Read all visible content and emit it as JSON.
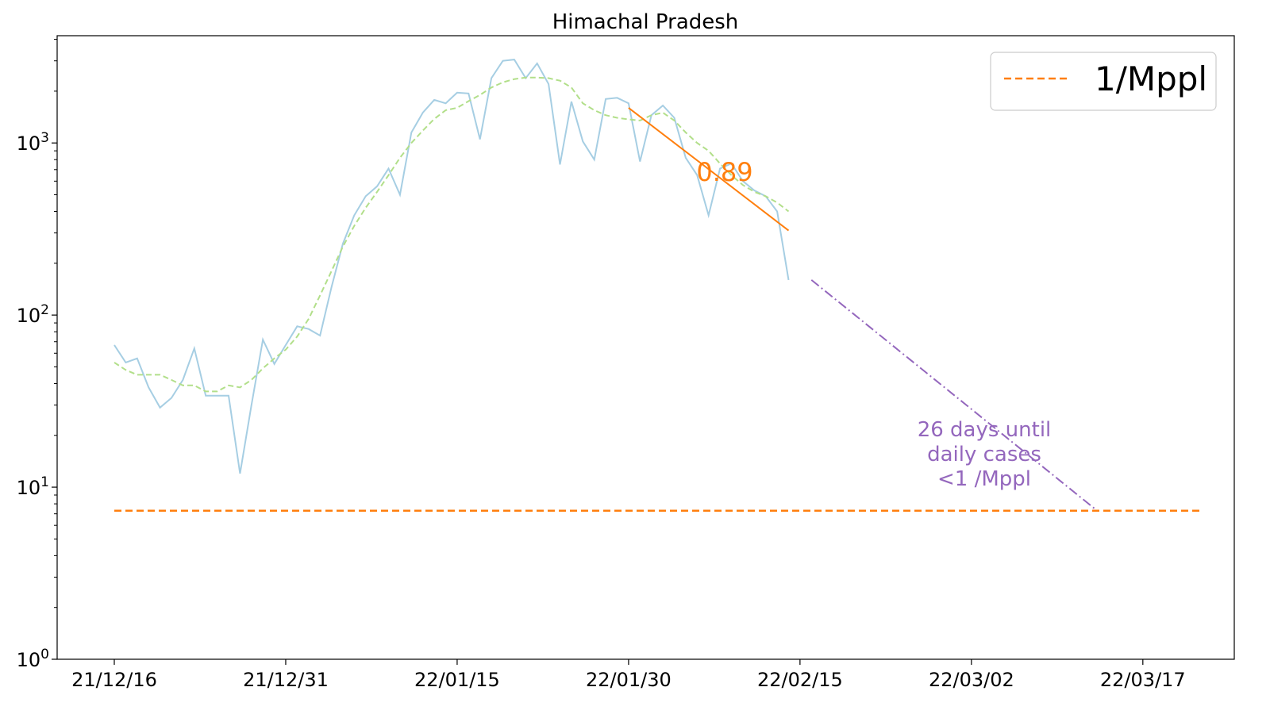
{
  "chart_data": {
    "type": "line",
    "title": "Himachal Pradesh",
    "xlabel": "",
    "ylabel": "",
    "y_scale": "log",
    "ylim": [
      1,
      4200
    ],
    "xlim": [
      "2021-12-11",
      "2022-03-24"
    ],
    "grid": false,
    "legend_position": "upper right",
    "x_tick_labels": [
      "21/12/16",
      "21/12/31",
      "22/01/15",
      "22/01/30",
      "22/02/15",
      "22/03/02",
      "22/03/17"
    ],
    "y_tick_labels": [
      {
        "base": "10",
        "exp": "0"
      },
      {
        "base": "10",
        "exp": "1"
      },
      {
        "base": "10",
        "exp": "2"
      },
      {
        "base": "10",
        "exp": "3"
      }
    ],
    "daily_cases": {
      "color": "#a6cee3",
      "start_date": "2021-12-16",
      "values": [
        67,
        53,
        56,
        38,
        29,
        33,
        42,
        64,
        34,
        34,
        34,
        12,
        30,
        72,
        52,
        67,
        86,
        83,
        76,
        145,
        260,
        380,
        490,
        560,
        710,
        500,
        1150,
        1500,
        1780,
        1700,
        1960,
        1940,
        1050,
        2380,
        3000,
        3050,
        2380,
        2900,
        2200,
        750,
        1740,
        1020,
        800,
        1800,
        1830,
        1700,
        780,
        1450,
        1650,
        1400,
        820,
        650,
        380,
        710,
        760,
        600,
        530,
        490,
        400,
        160
      ]
    },
    "smoothed": {
      "color": "#b2df8a",
      "start_date": "2021-12-16",
      "values": [
        53,
        48,
        45,
        45,
        45,
        42,
        39,
        39,
        36,
        36,
        39,
        38,
        42,
        49,
        56,
        63,
        75,
        95,
        130,
        180,
        250,
        330,
        420,
        520,
        650,
        820,
        1000,
        1180,
        1380,
        1550,
        1600,
        1750,
        1900,
        2100,
        2250,
        2350,
        2400,
        2400,
        2380,
        2300,
        2100,
        1700,
        1550,
        1450,
        1400,
        1370,
        1350,
        1450,
        1500,
        1350,
        1150,
        1000,
        900,
        760,
        650,
        570,
        520,
        490,
        450,
        400
      ]
    },
    "fit": {
      "color": "#ff7f0e",
      "label": "0.89",
      "start_date": "2022-01-30",
      "end_date": "2022-02-13",
      "y_start": 1600,
      "y_end": 310
    },
    "projection": {
      "color": "#9467bd",
      "start_date": "2022-02-15",
      "end_date": "2022-03-12",
      "y_start": 160,
      "y_end": 7.3,
      "annotation": [
        "26 days until",
        "daily cases",
        "<1 /Mppl"
      ]
    },
    "threshold": {
      "color": "#ff7f0e",
      "name": "1/Mppl",
      "value": 7.3,
      "start_date": "2021-12-16",
      "end_date": "2022-03-21"
    }
  }
}
